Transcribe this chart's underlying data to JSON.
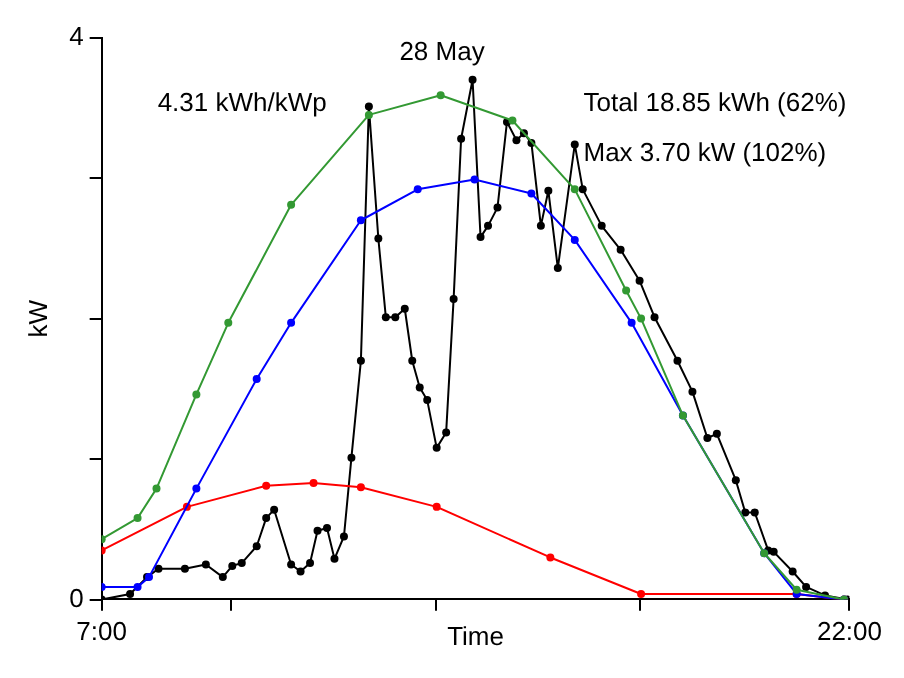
{
  "chart_data": {
    "type": "line",
    "title": "28 May",
    "xlabel": "Time",
    "ylabel": "kW",
    "annotations": [
      "4.31 kWh/kWp",
      "Total 18.85 kWh (62%)",
      "Max 3.70 kW (102%)"
    ],
    "xlim": [
      7,
      22
    ],
    "xticks": [
      {
        "value": 7,
        "label": "7:00"
      },
      {
        "value": 9.6,
        "label": null
      },
      {
        "value": 13.7,
        "label": null
      },
      {
        "value": 17.8,
        "label": null
      },
      {
        "value": 22,
        "label": "22:00"
      }
    ],
    "ylim": [
      0,
      4
    ],
    "yticks": [
      0,
      {
        "value": 1,
        "label": null
      },
      {
        "value": 2,
        "label": null
      },
      {
        "value": 3,
        "label": null
      },
      4
    ],
    "grid": false,
    "legend": false,
    "marker": "circle",
    "line_style": "solid",
    "series": [
      {
        "color": "#339933",
        "x": [
          7.0,
          7.72,
          8.1,
          8.9,
          9.54,
          10.8,
          12.36,
          13.8,
          15.24,
          16.49,
          17.52,
          17.82,
          18.66,
          20.29,
          20.94,
          21.89
        ],
        "values": [
          0.43,
          0.58,
          0.79,
          1.46,
          1.97,
          2.81,
          3.45,
          3.59,
          3.41,
          2.92,
          2.2,
          2.0,
          1.31,
          0.33,
          0.07,
          0
        ]
      },
      {
        "color": "#0000ff",
        "x": [
          7.0,
          7.72,
          7.95,
          8.9,
          10.11,
          10.8,
          12.2,
          13.34,
          14.48,
          15.62,
          16.49,
          17.63,
          18.66,
          20.29,
          20.94,
          21.89
        ],
        "values": [
          0.09,
          0.09,
          0.16,
          0.79,
          1.57,
          1.97,
          2.7,
          2.92,
          2.99,
          2.89,
          2.56,
          1.97,
          1.31,
          0.33,
          0.04,
          0
        ]
      },
      {
        "color": "#ff0000",
        "x": [
          7.0,
          8.71,
          10.3,
          11.25,
          12.2,
          13.72,
          16.0,
          17.82,
          20.94,
          21.89
        ],
        "values": [
          0.35,
          0.66,
          0.81,
          0.83,
          0.8,
          0.66,
          0.3,
          0.04,
          0.04,
          0
        ]
      },
      {
        "color": "#000000",
        "x": [
          7.0,
          7.57,
          7.91,
          8.14,
          8.67,
          9.09,
          9.43,
          9.62,
          9.81,
          10.11,
          10.3,
          10.46,
          10.8,
          10.99,
          11.18,
          11.33,
          11.52,
          11.67,
          11.86,
          12.01,
          12.2,
          12.36,
          12.55,
          12.7,
          12.89,
          13.08,
          13.23,
          13.38,
          13.53,
          13.72,
          13.91,
          14.06,
          14.21,
          14.44,
          14.6,
          14.75,
          14.94,
          15.13,
          15.32,
          15.47,
          15.62,
          15.81,
          15.96,
          16.15,
          16.49,
          16.65,
          17.03,
          17.41,
          17.79,
          18.09,
          18.55,
          18.85,
          19.15,
          19.34,
          19.72,
          19.91,
          20.1,
          20.37,
          20.48,
          20.86,
          21.13,
          21.51,
          21.96
        ],
        "values": [
          0,
          0.04,
          0.16,
          0.22,
          0.22,
          0.25,
          0.16,
          0.24,
          0.26,
          0.38,
          0.58,
          0.64,
          0.25,
          0.2,
          0.26,
          0.49,
          0.51,
          0.29,
          0.45,
          1.01,
          1.7,
          3.51,
          2.57,
          2.01,
          2.01,
          2.07,
          1.7,
          1.51,
          1.42,
          1.08,
          1.19,
          2.14,
          3.28,
          3.7,
          2.58,
          2.66,
          2.79,
          3.4,
          3.27,
          3.32,
          3.25,
          2.66,
          2.91,
          2.36,
          3.24,
          2.92,
          2.66,
          2.49,
          2.27,
          2.01,
          1.7,
          1.48,
          1.15,
          1.18,
          0.85,
          0.62,
          0.62,
          0.35,
          0.34,
          0.2,
          0.09,
          0.03,
          0
        ]
      }
    ]
  }
}
